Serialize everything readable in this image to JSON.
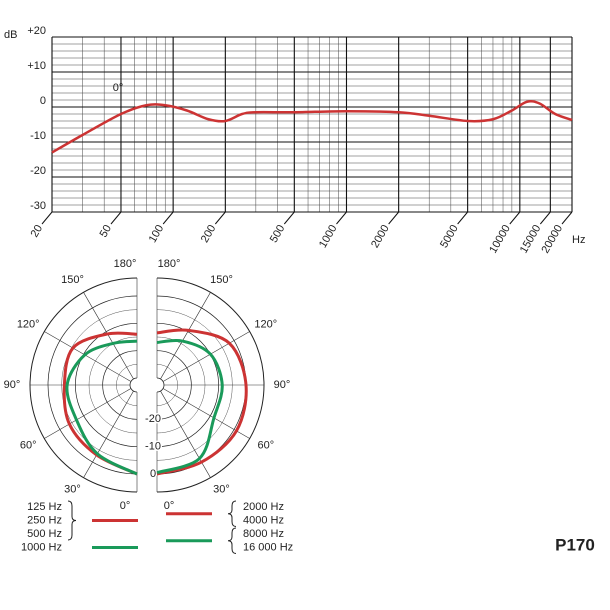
{
  "chart_data": [
    {
      "type": "line",
      "y_label": "dB",
      "x_unit": "Hz",
      "annotation": "0°",
      "log_x": true,
      "xlim": [
        20,
        20000
      ],
      "ylim": [
        -30,
        20
      ],
      "xticks": [
        20,
        50,
        100,
        200,
        500,
        1000,
        2000,
        5000,
        10000,
        15000,
        20000
      ],
      "yticks": [
        {
          "value": 20,
          "label": "+20"
        },
        {
          "value": 10,
          "label": "+10"
        },
        0,
        -10,
        -20,
        -30
      ],
      "grid": true,
      "series": [
        {
          "color": "#cc3333",
          "x": [
            20,
            30,
            50,
            70,
            90,
            120,
            160,
            200,
            250,
            300,
            500,
            1000,
            2000,
            3000,
            5000,
            7000,
            9000,
            11000,
            13000,
            16000,
            20000
          ],
          "values": [
            -13,
            -8,
            -2,
            0.5,
            0.5,
            -1,
            -3.5,
            -4,
            -2,
            -1.5,
            -1.5,
            -1.2,
            -1.5,
            -2.5,
            -4,
            -3.5,
            -1,
            1.5,
            1,
            -2,
            -3.7
          ]
        }
      ]
    },
    {
      "type": "polar",
      "rlim": [
        -30,
        0
      ],
      "rticks": [
        -20,
        -10,
        0
      ],
      "thetaticks": [
        {
          "value": 0,
          "label": "0°"
        },
        {
          "value": 30,
          "label": "30°"
        },
        {
          "value": 60,
          "label": "60°"
        },
        {
          "value": 90,
          "label": "90°"
        },
        {
          "value": 120,
          "label": "120°"
        },
        {
          "value": 150,
          "label": "150°"
        },
        {
          "value": 180,
          "label": "180°"
        }
      ],
      "theta": [
        0,
        30,
        60,
        90,
        120,
        150,
        180
      ],
      "series": [
        {
          "name": [
            "125 Hz",
            "250 Hz",
            "500 Hz"
          ],
          "color": "#cc3333",
          "side": "left",
          "values": [
            0,
            -3,
            -4,
            -6,
            -5.5,
            -11,
            -14
          ]
        },
        {
          "name": [
            "1000 Hz"
          ],
          "color": "#1a9a5a",
          "side": "left",
          "values": [
            0,
            -3.5,
            -7,
            -7,
            -10.5,
            -15,
            -16.5
          ]
        },
        {
          "name": [
            "2000 Hz",
            "4000 Hz"
          ],
          "color": "#cc3333",
          "side": "right",
          "values": [
            0,
            0,
            1,
            0,
            -2,
            -9.5,
            -13.5
          ]
        },
        {
          "name": [
            "8000 Hz",
            "16 000 Hz"
          ],
          "color": "#1a9a5a",
          "side": "right",
          "values": [
            -0.5,
            -1.5,
            -8.5,
            -8.7,
            -10,
            -14,
            -17
          ]
        }
      ]
    }
  ],
  "label": "P170"
}
